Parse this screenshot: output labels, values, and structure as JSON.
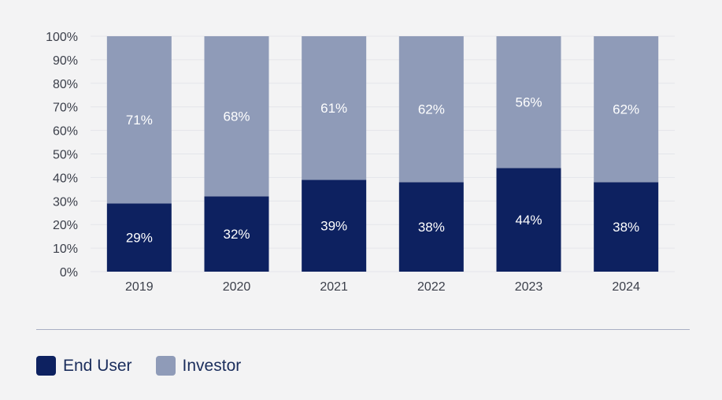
{
  "colors": {
    "end_user": "#0d2160",
    "investor": "#8f9bb8",
    "grid": "#e4e5ea",
    "axis_text": "#3b3f4a",
    "bar_label": "#ffffff",
    "legend_text": "#1a2d5c",
    "background": "#f3f3f4"
  },
  "chart_data": {
    "type": "bar",
    "stacked": true,
    "categories": [
      "2019",
      "2020",
      "2021",
      "2022",
      "2023",
      "2024"
    ],
    "series": [
      {
        "name": "End User",
        "values": [
          29,
          32,
          39,
          38,
          44,
          38
        ],
        "labels": [
          "29%",
          "32%",
          "39%",
          "38%",
          "44%",
          "38%"
        ]
      },
      {
        "name": "Investor",
        "values": [
          71,
          68,
          61,
          62,
          56,
          62
        ],
        "labels": [
          "71%",
          "68%",
          "61%",
          "62%",
          "56%",
          "62%"
        ]
      }
    ],
    "ylim": [
      0,
      100
    ],
    "yticks": [
      "0%",
      "10%",
      "20%",
      "30%",
      "40%",
      "50%",
      "60%",
      "70%",
      "80%",
      "90%",
      "100%"
    ],
    "grid": true,
    "legend_position": "bottom-left"
  },
  "legend": {
    "items": [
      {
        "label": "End User",
        "color": "#0d2160"
      },
      {
        "label": "Investor",
        "color": "#8f9bb8"
      }
    ]
  }
}
